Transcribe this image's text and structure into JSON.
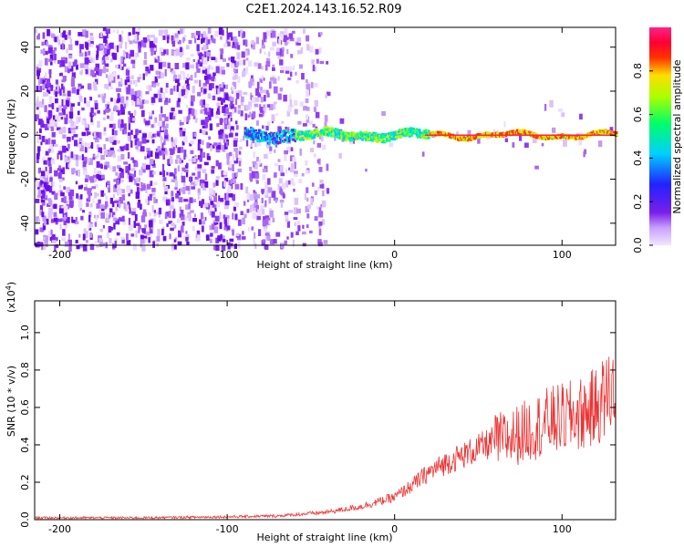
{
  "figure": {
    "title": "C2E1.2024.143.16.52.R09"
  },
  "chart_data": [
    {
      "type": "heatmap",
      "xlabel": "Height of straight line (km)",
      "ylabel": "Frequency (Hz)",
      "xlim": [
        -215,
        132
      ],
      "ylim": [
        -50,
        49
      ],
      "xticks": [
        -200,
        -100,
        0,
        100
      ],
      "yticks": [
        -40,
        -20,
        0,
        20,
        40
      ],
      "colorbar": {
        "label": "Normalized spectral amplitude",
        "range": [
          0.0,
          1.0
        ],
        "ticks": [
          0.0,
          0.2,
          0.4,
          0.6,
          0.8
        ]
      },
      "signal_track": {
        "x_start": -90,
        "x_end": 132,
        "frequency_hz": 0,
        "noise_dominated_until_km": -60,
        "noise_fades_out_km": -40
      },
      "grid": false
    },
    {
      "type": "line",
      "xlabel": "Height of straight line (km)",
      "ylabel": "SNR (10 * v/v)",
      "y_scale_note": "(x10",
      "y_scale_exponent": "4",
      "xlim": [
        -215,
        132
      ],
      "ylim": [
        0,
        1.17
      ],
      "xticks": [
        -200,
        -100,
        0,
        100
      ],
      "yticks": [
        0.0,
        0.2,
        0.4,
        0.6,
        0.8,
        1.0
      ],
      "series_color": "#ee3333",
      "series": [
        {
          "x": [
            -215,
            -150,
            -100,
            -70,
            -40,
            -20,
            0,
            10,
            20,
            30,
            40,
            50,
            60,
            70,
            80,
            90,
            100,
            110,
            120,
            125,
            130,
            132
          ],
          "values": [
            0.01,
            0.01,
            0.015,
            0.02,
            0.04,
            0.07,
            0.12,
            0.18,
            0.25,
            0.3,
            0.34,
            0.38,
            0.42,
            0.44,
            0.48,
            0.52,
            0.54,
            0.56,
            0.6,
            0.65,
            0.7,
            0.68
          ]
        }
      ],
      "grid": false
    }
  ]
}
